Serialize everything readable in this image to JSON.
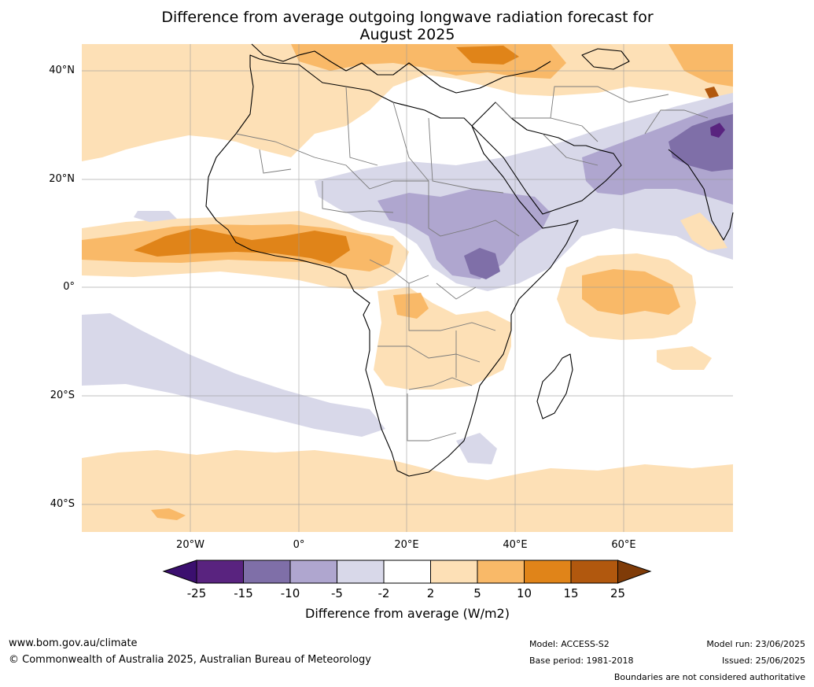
{
  "title_line1": "Difference from average outgoing longwave radiation forecast for",
  "title_line2": "August 2025",
  "axes": {
    "lat_labels": [
      "40°N",
      "20°N",
      "0°",
      "20°S",
      "40°S"
    ],
    "lon_labels": [
      "20°W",
      "0°",
      "20°E",
      "40°E",
      "60°E"
    ]
  },
  "colorbar": {
    "labels": [
      "-25",
      "-15",
      "-10",
      "-5",
      "-2",
      "2",
      "5",
      "10",
      "15",
      "25"
    ],
    "colors": [
      "#3b0f6f",
      "#59237f",
      "#7f6fa8",
      "#afa6cf",
      "#d8d8e9",
      "#ffffff",
      "#fde0b6",
      "#f9b968",
      "#e08419",
      "#b1580e",
      "#7f3b08"
    ],
    "title": "Difference from average (W/m2)"
  },
  "footer": {
    "url": "www.bom.gov.au/climate",
    "copyright": "© Commonwealth of Australia 2025, Australian Bureau of Meteorology",
    "model": "Model: ACCESS-S2",
    "base_period": "Base period: 1981-2018",
    "model_run": "Model run: 23/06/2025",
    "issued": "Issued: 25/06/2025",
    "disclaimer": "Boundaries are not considered authoritative"
  }
}
